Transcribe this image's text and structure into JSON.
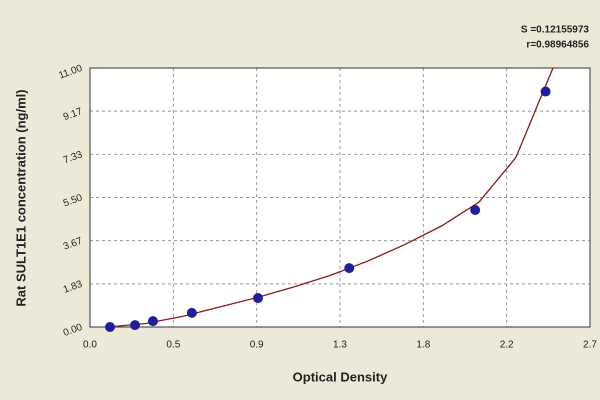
{
  "chart_data": {
    "type": "scatter",
    "annotations": [
      "S =0.12155973",
      "r=0.98964856"
    ],
    "x_label": "Optical Density",
    "y_label": "Rat SULT1E1 concentration (ng/ml)",
    "xlim": [
      0,
      2.7
    ],
    "ylim": [
      0,
      11
    ],
    "xticks": [
      {
        "value": 0,
        "label": "0.0"
      },
      {
        "value": 0.45,
        "label": "0.5"
      },
      0.9,
      {
        "value": 1.35,
        "label": "1.3"
      },
      1.8,
      {
        "value": 2.25,
        "label": "2.2"
      },
      2.7
    ],
    "yticks": [
      {
        "value": 0,
        "label": "0.00"
      },
      {
        "value": 1.833,
        "label": "1.83"
      },
      {
        "value": 3.667,
        "label": "3.67"
      },
      {
        "value": 5.5,
        "label": "5.50"
      },
      {
        "value": 7.333,
        "label": "7.33"
      },
      {
        "value": 9.167,
        "label": "9.17"
      },
      {
        "value": 11,
        "label": "11.00"
      }
    ],
    "grid": true,
    "points": {
      "color": "#1f1f9e",
      "x": [
        0.108,
        0.243,
        0.34,
        0.55,
        0.907,
        1.4,
        2.08,
        2.46
      ],
      "y": [
        0,
        0.08,
        0.25,
        0.6,
        1.23,
        2.5,
        4.97,
        10.0
      ]
    },
    "curve": {
      "color": "#8b1a1a",
      "x": [
        0.1,
        0.3,
        0.5,
        0.7,
        0.9,
        1.1,
        1.3,
        1.5,
        1.7,
        1.9,
        2.1,
        2.3,
        2.5
      ],
      "y": [
        0,
        0.15,
        0.45,
        0.85,
        1.25,
        1.7,
        2.2,
        2.8,
        3.5,
        4.3,
        5.3,
        7.2,
        11.0
      ]
    }
  }
}
